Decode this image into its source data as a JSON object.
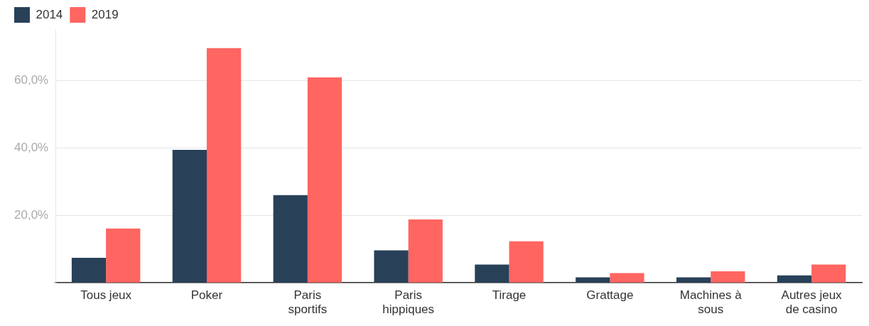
{
  "chart_data": {
    "type": "bar",
    "categories": [
      "Tous jeux",
      "Poker",
      "Paris sportifs",
      "Paris hippiques",
      "Tirage",
      "Grattage",
      "Machines à sous",
      "Autres jeux de casino"
    ],
    "series": [
      {
        "name": "2014",
        "color": "#284159",
        "values": [
          7.4,
          39.4,
          26.0,
          9.6,
          5.4,
          1.6,
          1.6,
          2.2
        ]
      },
      {
        "name": "2019",
        "color": "#ff6561",
        "values": [
          16.1,
          69.6,
          60.9,
          18.8,
          12.3,
          2.9,
          3.4,
          5.4
        ]
      }
    ],
    "ylim": [
      0,
      75
    ],
    "yticks": [
      {
        "value": 0,
        "label": null
      },
      {
        "value": 20,
        "label": "20,0%"
      },
      {
        "value": 40,
        "label": "40,0%"
      },
      {
        "value": 60,
        "label": "60,0%"
      }
    ],
    "grid": "y",
    "legend": "top left"
  }
}
